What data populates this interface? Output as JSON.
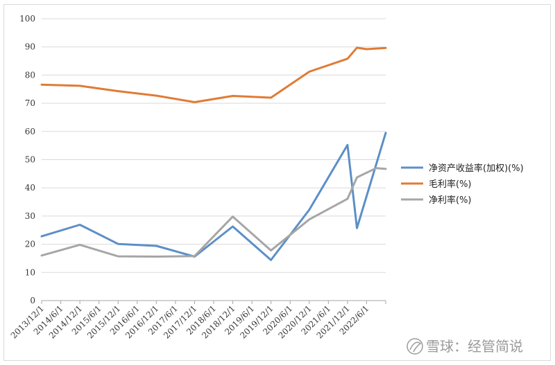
{
  "chart_data": {
    "type": "line",
    "title": "",
    "xlabel": "",
    "ylabel": "",
    "ylim": [
      0,
      100
    ],
    "y_ticks": [
      0,
      10,
      20,
      30,
      40,
      50,
      60,
      70,
      80,
      90,
      100
    ],
    "grid": "horizontal",
    "legend_position": "right",
    "x_tick_labels": [
      "2013/12/1",
      "2014/6/1",
      "2014/12/1",
      "2015/6/1",
      "2015/12/1",
      "2016/6/1",
      "2016/12/1",
      "2017/6/1",
      "2017/12/1",
      "2018/6/1",
      "2018/12/1",
      "2019/6/1",
      "2019/12/1",
      "2020/6/1",
      "2020/12/1",
      "2021/6/1",
      "2021/12/1",
      "2022/6/1"
    ],
    "x_start": "2013-12-01",
    "x_end": "2022-12-01",
    "series": [
      {
        "name": "净资产收益率(加权)(%)",
        "color": "#5B8FC7",
        "points": [
          {
            "x": "2013-12-01",
            "y": 22.8
          },
          {
            "x": "2014-12-01",
            "y": 26.9
          },
          {
            "x": "2015-12-01",
            "y": 20.1
          },
          {
            "x": "2016-12-01",
            "y": 19.4
          },
          {
            "x": "2017-12-01",
            "y": 15.6
          },
          {
            "x": "2018-12-01",
            "y": 26.3
          },
          {
            "x": "2019-12-01",
            "y": 14.4
          },
          {
            "x": "2020-12-01",
            "y": 32.2
          },
          {
            "x": "2021-12-01",
            "y": 55.2
          },
          {
            "x": "2022-03-01",
            "y": 25.7
          },
          {
            "x": "2022-12-01",
            "y": 59.5
          }
        ]
      },
      {
        "name": "毛利率(%)",
        "color": "#E07B35",
        "points": [
          {
            "x": "2013-12-01",
            "y": 76.6
          },
          {
            "x": "2014-12-01",
            "y": 76.2
          },
          {
            "x": "2015-12-01",
            "y": 74.3
          },
          {
            "x": "2016-12-01",
            "y": 72.7
          },
          {
            "x": "2017-12-01",
            "y": 70.4
          },
          {
            "x": "2018-12-01",
            "y": 72.6
          },
          {
            "x": "2019-12-01",
            "y": 72.0
          },
          {
            "x": "2020-12-01",
            "y": 81.2
          },
          {
            "x": "2021-12-01",
            "y": 85.8
          },
          {
            "x": "2022-03-01",
            "y": 89.7
          },
          {
            "x": "2022-06-01",
            "y": 89.2
          },
          {
            "x": "2022-12-01",
            "y": 89.6
          }
        ]
      },
      {
        "name": "净利率(%)",
        "color": "#A6A6A6",
        "points": [
          {
            "x": "2013-12-01",
            "y": 16.0
          },
          {
            "x": "2014-12-01",
            "y": 19.8
          },
          {
            "x": "2015-12-01",
            "y": 15.7
          },
          {
            "x": "2016-12-01",
            "y": 15.6
          },
          {
            "x": "2017-12-01",
            "y": 15.8
          },
          {
            "x": "2018-12-01",
            "y": 29.8
          },
          {
            "x": "2019-12-01",
            "y": 17.8
          },
          {
            "x": "2020-12-01",
            "y": 28.8
          },
          {
            "x": "2021-12-01",
            "y": 36.1
          },
          {
            "x": "2022-03-01",
            "y": 43.7
          },
          {
            "x": "2022-09-01",
            "y": 47.0
          },
          {
            "x": "2022-12-01",
            "y": 46.7
          }
        ]
      }
    ]
  },
  "watermark": {
    "text": "雪球：经管简说"
  }
}
